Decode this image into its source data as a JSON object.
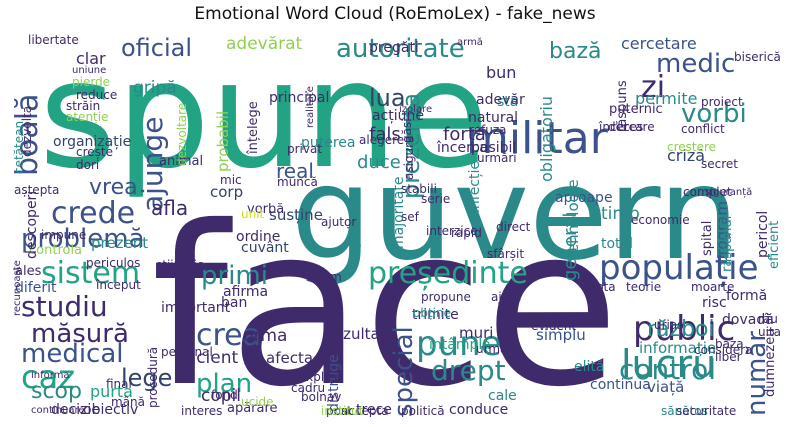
{
  "title": "Emotional Word Cloud (RoEmoLex) - fake_news",
  "colors": {
    "purple": "#3f2a6b",
    "teal": "#2a8a8a",
    "green": "#22a384",
    "blue": "#3b528b",
    "lime": "#8fd14f",
    "darkblue": "#31446b",
    "yellow": "#cde11d"
  },
  "words": [
    {
      "t": "spune",
      "c": "green"
    },
    {
      "t": "guvern",
      "c": "teal"
    },
    {
      "t": "face",
      "c": "purple"
    },
    {
      "t": "militar",
      "c": "blue"
    },
    {
      "t": "sistem",
      "c": "green"
    },
    {
      "t": "crede",
      "c": "blue"
    },
    {
      "t": "problemă",
      "c": "blue"
    },
    {
      "t": "populație",
      "c": "blue"
    },
    {
      "t": "președinte",
      "c": "green"
    },
    {
      "t": "public",
      "c": "purple"
    },
    {
      "t": "lucru",
      "c": "teal"
    },
    {
      "t": "control",
      "c": "teal"
    },
    {
      "t": "studiu",
      "c": "purple"
    },
    {
      "t": "măsură",
      "c": "purple"
    },
    {
      "t": "medical",
      "c": "blue"
    },
    {
      "t": "caz",
      "c": "green"
    },
    {
      "t": "scop",
      "c": "teal"
    },
    {
      "t": "lege",
      "c": "darkblue"
    },
    {
      "t": "pune",
      "c": "teal"
    },
    {
      "t": "drept",
      "c": "teal"
    },
    {
      "t": "crea",
      "c": "blue"
    },
    {
      "t": "plan",
      "c": "green"
    },
    {
      "t": "primi",
      "c": "teal"
    },
    {
      "t": "boală",
      "c": "blue"
    },
    {
      "t": "ajunge",
      "c": "blue"
    },
    {
      "t": "autoritate",
      "c": "teal"
    },
    {
      "t": "oficial",
      "c": "blue"
    },
    {
      "t": "medic",
      "c": "blue"
    },
    {
      "t": "zi",
      "c": "purple"
    },
    {
      "t": "vorbi",
      "c": "teal"
    },
    {
      "t": "bază",
      "c": "teal"
    },
    {
      "t": "lua",
      "c": "darkblue"
    },
    {
      "t": "prezenta",
      "c": "teal"
    },
    {
      "t": "special",
      "c": "blue"
    },
    {
      "t": "război",
      "c": "teal"
    },
    {
      "t": "număr",
      "c": "blue"
    },
    {
      "t": "vrea",
      "c": "blue"
    },
    {
      "t": "afla",
      "c": "purple"
    },
    {
      "t": "adevărat",
      "c": "lime"
    },
    {
      "t": "cercetare",
      "c": "blue"
    },
    {
      "t": "permite",
      "c": "teal"
    },
    {
      "t": "criză",
      "c": "darkblue"
    },
    {
      "t": "informație",
      "c": "teal"
    },
    {
      "t": "viață",
      "c": "blue"
    },
    {
      "t": "copil",
      "c": "purple"
    },
    {
      "t": "urma",
      "c": "purple"
    },
    {
      "t": "pacient",
      "c": "purple"
    },
    {
      "t": "real",
      "c": "blue"
    },
    {
      "t": "gripă",
      "c": "teal"
    },
    {
      "t": "organizație",
      "c": "darkblue"
    },
    {
      "t": "fals",
      "c": "purple"
    },
    {
      "t": "forță",
      "c": "purple"
    },
    {
      "t": "duce",
      "c": "teal"
    },
    {
      "t": "susține",
      "c": "darkblue"
    },
    {
      "t": "corp",
      "c": "darkblue"
    },
    {
      "t": "puterea",
      "c": "teal"
    },
    {
      "t": "timp",
      "c": "teal"
    },
    {
      "t": "general",
      "c": "teal"
    },
    {
      "t": "total",
      "c": "teal"
    },
    {
      "t": "simplu",
      "c": "blue"
    },
    {
      "t": "rezultat",
      "c": "purple"
    },
    {
      "t": "muri",
      "c": "purple"
    },
    {
      "t": "afecta",
      "c": "purple"
    },
    {
      "t": "important",
      "c": "purple"
    },
    {
      "t": "ban",
      "c": "purple"
    },
    {
      "t": "afirma",
      "c": "purple"
    },
    {
      "t": "cuvânt",
      "c": "darkblue"
    },
    {
      "t": "ordine",
      "c": "purple"
    },
    {
      "t": "prezent",
      "c": "teal"
    },
    {
      "t": "controla",
      "c": "lime"
    },
    {
      "t": "ales",
      "c": "purple"
    },
    {
      "t": "diferit",
      "c": "blue"
    },
    {
      "t": "purta",
      "c": "green"
    },
    {
      "t": "decizie",
      "c": "purple"
    },
    {
      "t": "obiectiv",
      "c": "purple"
    },
    {
      "t": "conduce",
      "c": "purple"
    },
    {
      "t": "trece",
      "c": "purple"
    },
    {
      "t": "cale",
      "c": "teal"
    },
    {
      "t": "întâmpla",
      "c": "green"
    },
    {
      "t": "distruge",
      "c": "blue"
    },
    {
      "t": "dovadă",
      "c": "purple"
    },
    {
      "t": "risc",
      "c": "purple"
    },
    {
      "t": "formă",
      "c": "purple"
    },
    {
      "t": "continua",
      "c": "blue"
    },
    {
      "t": "elită",
      "c": "teal"
    },
    {
      "t": "urmare",
      "c": "purple"
    },
    {
      "t": "evident",
      "c": "purple"
    },
    {
      "t": "clar",
      "c": "purple"
    },
    {
      "t": "bun",
      "c": "purple"
    },
    {
      "t": "sta",
      "c": "teal"
    },
    {
      "t": "adevăr",
      "c": "purple"
    },
    {
      "t": "natural",
      "c": "purple"
    },
    {
      "t": "posibil",
      "c": "purple"
    },
    {
      "t": "acțiune",
      "c": "purple"
    },
    {
      "t": "pregăti",
      "c": "purple"
    },
    {
      "t": "principal",
      "c": "purple"
    },
    {
      "t": "înțelege",
      "c": "purple"
    },
    {
      "t": "probabil",
      "c": "lime"
    },
    {
      "t": "animal",
      "c": "purple"
    },
    {
      "t": "aproape",
      "c": "blue"
    },
    {
      "t": "program",
      "c": "blue"
    },
    {
      "t": "tehnologie",
      "c": "teal"
    },
    {
      "t": "obligatoriu",
      "c": "teal"
    },
    {
      "t": "încerca",
      "c": "purple"
    },
    {
      "t": "majoritate",
      "c": "teal"
    },
    {
      "t": "infecție",
      "c": "teal"
    },
    {
      "t": "trimite",
      "c": "purple"
    },
    {
      "t": "mic",
      "c": "purple"
    },
    {
      "t": "vorbă",
      "c": "purple"
    },
    {
      "t": "epidemie",
      "c": "teal"
    },
    {
      "t": "unit",
      "c": "yellow"
    },
    {
      "t": "dumnezeu",
      "c": "purple"
    },
    {
      "t": "pericol",
      "c": "purple"
    },
    {
      "t": "spital",
      "c": "purple"
    },
    {
      "t": "răspândi",
      "c": "teal"
    },
    {
      "t": "eficient",
      "c": "teal"
    },
    {
      "t": "uita",
      "c": "purple"
    },
    {
      "t": "râu",
      "c": "purple"
    },
    {
      "t": "puternic",
      "c": "purple"
    },
    {
      "t": "răspuns",
      "c": "purple"
    },
    {
      "t": "biserică",
      "c": "purple"
    },
    {
      "t": "proiect",
      "c": "purple"
    },
    {
      "t": "încercare",
      "c": "purple"
    },
    {
      "t": "deces",
      "c": "purple"
    },
    {
      "t": "conflict",
      "c": "purple"
    },
    {
      "t": "creștere",
      "c": "lime"
    },
    {
      "t": "secret",
      "c": "purple"
    },
    {
      "t": "complet",
      "c": "purple"
    },
    {
      "t": "siguranță",
      "c": "purple"
    },
    {
      "t": "economie",
      "c": "purple"
    },
    {
      "t": "lupta",
      "c": "purple"
    },
    {
      "t": "teorie",
      "c": "purple"
    },
    {
      "t": "moarte",
      "c": "purple"
    },
    {
      "t": "urias",
      "c": "purple"
    },
    {
      "t": "considera",
      "c": "purple"
    },
    {
      "t": "liber",
      "c": "purple"
    },
    {
      "t": "baza",
      "c": "purple"
    },
    {
      "t": "sănătos",
      "c": "teal"
    },
    {
      "t": "securitate",
      "c": "purple"
    },
    {
      "t": "găsi",
      "c": "purple"
    },
    {
      "t": "asigura",
      "c": "purple"
    },
    {
      "t": "refuza",
      "c": "purple"
    },
    {
      "t": "urmări",
      "c": "purple"
    },
    {
      "t": "alegere",
      "c": "purple"
    },
    {
      "t": "privat",
      "c": "purple"
    },
    {
      "t": "muncă",
      "c": "purple"
    },
    {
      "t": "stabili",
      "c": "purple"
    },
    {
      "t": "serie",
      "c": "purple"
    },
    {
      "t": "ajutor",
      "c": "purple"
    },
    {
      "t": "sef",
      "c": "purple"
    },
    {
      "t": "interzice",
      "c": "purple"
    },
    {
      "t": "rapid",
      "c": "purple"
    },
    {
      "t": "direct",
      "c": "purple"
    },
    {
      "t": "sfârșit",
      "c": "purple"
    },
    {
      "t": "ajuta",
      "c": "purple"
    },
    {
      "t": "propune",
      "c": "purple"
    },
    {
      "t": "obține",
      "c": "teal"
    },
    {
      "t": "regim",
      "c": "purple"
    },
    {
      "t": "explica",
      "c": "purple"
    },
    {
      "t": "cadru",
      "c": "purple"
    },
    {
      "t": "bolnav",
      "c": "purple"
    },
    {
      "t": "accepta",
      "c": "purple"
    },
    {
      "t": "politică",
      "c": "purple"
    },
    {
      "t": "post",
      "c": "purple"
    },
    {
      "t": "institut",
      "c": "lime"
    },
    {
      "t": "apărare",
      "c": "purple"
    },
    {
      "t": "interes",
      "c": "purple"
    },
    {
      "t": "ucide",
      "c": "lime"
    },
    {
      "t": "fond",
      "c": "purple"
    },
    {
      "t": "mână",
      "c": "purple"
    },
    {
      "t": "final",
      "c": "purple"
    },
    {
      "t": "personal",
      "c": "purple"
    },
    {
      "t": "procedură",
      "c": "purple"
    },
    {
      "t": "informa",
      "c": "purple"
    },
    {
      "t": "continuare",
      "c": "purple"
    },
    {
      "t": "periculos",
      "c": "purple"
    },
    {
      "t": "început",
      "c": "purple"
    },
    {
      "t": "științific",
      "c": "purple"
    },
    {
      "t": "impune",
      "c": "purple"
    },
    {
      "t": "aștepta",
      "c": "purple"
    },
    {
      "t": "recunoaște",
      "c": "purple"
    },
    {
      "t": "cetățean",
      "c": "teal"
    },
    {
      "t": "descoperi",
      "c": "purple"
    },
    {
      "t": "dori",
      "c": "purple"
    },
    {
      "t": "crește",
      "c": "purple"
    },
    {
      "t": "atenție",
      "c": "lime"
    },
    {
      "t": "dezvoltare",
      "c": "lime"
    },
    {
      "t": "pierde",
      "c": "lime"
    },
    {
      "t": "reduce",
      "c": "purple"
    },
    {
      "t": "uniune",
      "c": "purple"
    },
    {
      "t": "străin",
      "c": "purple"
    },
    {
      "t": "libertate",
      "c": "purple"
    },
    {
      "t": "dezvolta",
      "c": "purple"
    },
    {
      "t": "armă",
      "c": "purple"
    },
    {
      "t": "realitate",
      "c": "purple"
    },
    {
      "t": "izolare",
      "c": "purple"
    }
  ]
}
